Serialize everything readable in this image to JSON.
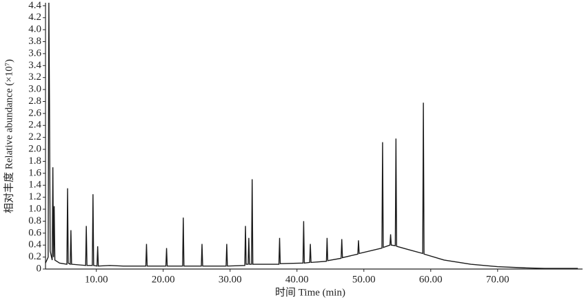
{
  "chart_data": {
    "type": "line",
    "x_label": "时间 Time (min)",
    "y_label": "相对丰度 Relative abundance (×10⁷)",
    "color": "#1a1a1a",
    "xlim": [
      2.4,
      82.7
    ],
    "ylim": [
      0,
      4.45
    ],
    "xticks": [
      {
        "value": 10,
        "label": "10.00"
      },
      {
        "value": 20,
        "label": "20.00"
      },
      {
        "value": 30,
        "label": "30.00"
      },
      {
        "value": 40,
        "label": "40.00"
      },
      {
        "value": 50,
        "label": "50.00"
      },
      {
        "value": 60,
        "label": "60.00"
      },
      {
        "value": 70,
        "label": "70.00"
      }
    ],
    "yticks": [
      0,
      0.2,
      0.4,
      0.6,
      0.8,
      {
        "value": 1,
        "label": "1.0"
      },
      1.2,
      1.4,
      1.6,
      1.8,
      {
        "value": 2,
        "label": "2.0"
      },
      2.2,
      2.4,
      2.6,
      2.8,
      {
        "value": 3,
        "label": "3.0"
      },
      3.2,
      3.4,
      3.6,
      3.8,
      {
        "value": 4,
        "label": "4.0"
      },
      4.2,
      4.4
    ],
    "x": [
      2.4,
      2.8,
      2.9,
      3.0,
      3.1,
      3.4,
      3.5,
      3.6,
      3.7,
      3.8,
      4.5,
      5.6,
      5.7,
      5.8,
      6.1,
      6.2,
      6.3,
      8.4,
      8.5,
      8.6,
      9.4,
      9.5,
      9.6,
      10.1,
      10.2,
      10.3,
      12.0,
      14.0,
      17.4,
      17.5,
      17.6,
      20.4,
      20.5,
      20.6,
      22.9,
      23.0,
      23.1,
      25.7,
      25.8,
      25.9,
      29.4,
      29.5,
      29.6,
      32.2,
      32.3,
      32.4,
      32.7,
      32.8,
      32.9,
      33.2,
      33.3,
      33.4,
      37.3,
      37.4,
      37.5,
      40.9,
      41.0,
      41.1,
      41.9,
      42.0,
      42.1,
      44.4,
      44.5,
      44.6,
      46.6,
      46.7,
      46.8,
      49.1,
      49.2,
      49.3,
      52.7,
      52.8,
      52.9,
      53.9,
      54.0,
      54.1,
      54.7,
      54.8,
      54.9,
      56.5,
      58.8,
      58.9,
      59.0,
      62,
      66,
      70,
      74,
      77,
      82
    ],
    "values": [
      0.1,
      0.2,
      4.45,
      2.7,
      0.3,
      0.15,
      1.7,
      0.2,
      1.05,
      0.15,
      0.1,
      0.08,
      1.35,
      0.1,
      0.08,
      0.65,
      0.08,
      0.06,
      0.72,
      0.06,
      0.06,
      1.25,
      0.06,
      0.05,
      0.38,
      0.05,
      0.06,
      0.05,
      0.05,
      0.42,
      0.05,
      0.05,
      0.35,
      0.05,
      0.05,
      0.86,
      0.05,
      0.05,
      0.42,
      0.05,
      0.05,
      0.42,
      0.05,
      0.06,
      0.72,
      0.08,
      0.08,
      0.52,
      0.08,
      0.08,
      1.5,
      0.08,
      0.08,
      0.52,
      0.09,
      0.1,
      0.8,
      0.1,
      0.11,
      0.42,
      0.11,
      0.13,
      0.52,
      0.14,
      0.18,
      0.5,
      0.19,
      0.25,
      0.48,
      0.26,
      0.35,
      2.12,
      0.36,
      0.4,
      0.58,
      0.4,
      0.39,
      2.18,
      0.38,
      0.33,
      0.26,
      2.78,
      0.25,
      0.15,
      0.08,
      0.04,
      0.02,
      0.01,
      0.01
    ]
  }
}
